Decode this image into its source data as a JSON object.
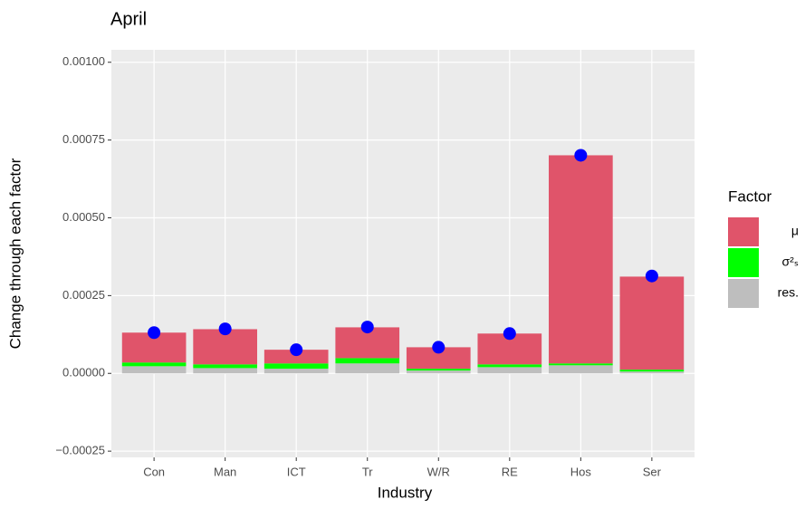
{
  "chart_data": {
    "type": "bar",
    "stacked": true,
    "title": "April",
    "x_label": "Industry",
    "y_label": "Change through each factor",
    "categories": [
      "Con",
      "Man",
      "ICT",
      "Tr",
      "W/R",
      "RE",
      "Hos",
      "Ser"
    ],
    "series": [
      {
        "name": "μ",
        "color": "#E0546A",
        "values": [
          9.6e-05,
          0.000113,
          4.4e-05,
          9.9e-05,
          6.9e-05,
          9.9e-05,
          0.000669,
          0.000299
        ]
      },
      {
        "name": "σ²ₛ",
        "color": "#00FF00",
        "values": [
          1.2e-05,
          1.2e-05,
          1.7e-05,
          1.7e-05,
          6e-06,
          9e-06,
          6e-06,
          6e-06
        ]
      },
      {
        "name": "res.",
        "color": "#BEBEBE",
        "values": [
          2.3e-05,
          1.7e-05,
          1.5e-05,
          3.2e-05,
          9e-06,
          2e-05,
          2.6e-05,
          6e-06
        ]
      }
    ],
    "points": {
      "color": "#0000FF",
      "values": [
        0.000131,
        0.000143,
        7.6e-05,
        0.000149,
        8.4e-05,
        0.000128,
        0.000701,
        0.000313
      ]
    },
    "legend_title": "Factor",
    "ylim": [
      -0.00027,
      0.00104
    ],
    "yticks": [
      {
        "value": -0.00025,
        "label": "−0.00025"
      },
      {
        "value": 0,
        "label": "0.00000"
      },
      {
        "value": 0.00025,
        "label": "0.00025"
      },
      {
        "value": 0.0005,
        "label": "0.00050"
      },
      {
        "value": 0.00075,
        "label": "0.00075"
      },
      {
        "value": 0.001,
        "label": "0.00100"
      }
    ],
    "grid": true,
    "legend": "right"
  }
}
